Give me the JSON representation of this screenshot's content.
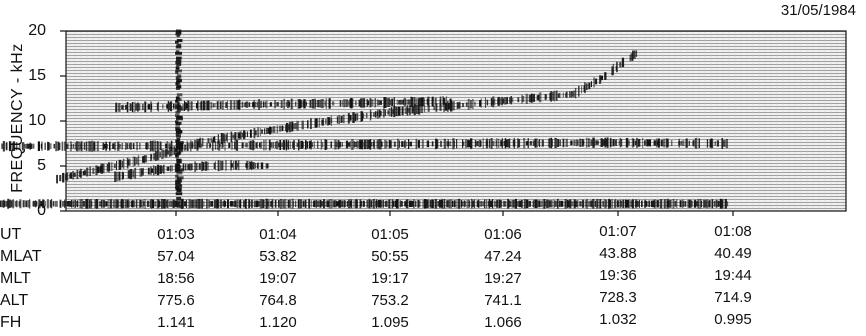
{
  "date": "31/05/1984",
  "chart_data": {
    "type": "heatmap",
    "title": "",
    "ylabel": "FREQUENCY - kHz",
    "ylim": [
      0,
      20
    ],
    "yticks": [
      "0",
      "5",
      "10",
      "15",
      "20"
    ],
    "x_ticks": [
      "01:03",
      "01:04",
      "01:05",
      "01:06",
      "01:07",
      "01:08"
    ],
    "grid": false,
    "ephemeris": [
      {
        "name": "UT",
        "values": [
          "01:03",
          "01:04",
          "01:05",
          "01:06",
          "01:07",
          "01:08"
        ]
      },
      {
        "name": "MLAT",
        "values": [
          "57.04",
          "53.82",
          "50:55",
          "47.24",
          "43.88",
          "40.49"
        ]
      },
      {
        "name": "MLT",
        "values": [
          "18:56",
          "19:07",
          "19:17",
          "19:27",
          "19:36",
          "19:44"
        ]
      },
      {
        "name": "ALT",
        "values": [
          "775.6",
          "764.8",
          "753.2",
          "741.1",
          "728.3",
          "714.9"
        ]
      },
      {
        "name": "FH",
        "values": [
          "1.141",
          "1.120",
          "1.095",
          "1.066",
          "1.032",
          "0.995"
        ]
      }
    ],
    "traces": [
      {
        "name": "band-7khz",
        "points": [
          [
            1.0,
            7.2
          ],
          [
            1.02,
            7.2
          ],
          [
            1.04,
            7.2
          ],
          [
            1.06,
            7.3
          ],
          [
            1.08,
            7.4
          ],
          [
            1.1,
            7.5
          ],
          [
            1.12,
            7.6
          ],
          [
            1.14,
            7.5
          ]
        ]
      },
      {
        "name": "band-4khz",
        "points": [
          [
            1.04,
            3.8
          ],
          [
            1.045,
            4.4
          ],
          [
            1.05,
            4.8
          ],
          [
            1.055,
            5.0
          ],
          [
            1.06,
            5.1
          ],
          [
            1.065,
            5.0
          ]
        ]
      },
      {
        "name": "whistler-rising",
        "points": [
          [
            1.03,
            3.5
          ],
          [
            1.045,
            5.8
          ],
          [
            1.055,
            7.8
          ],
          [
            1.07,
            9.5
          ],
          [
            1.085,
            11.0
          ],
          [
            1.1,
            12.0
          ],
          [
            1.115,
            13.0
          ],
          [
            1.12,
            15.0
          ],
          [
            1.125,
            17.5
          ]
        ]
      },
      {
        "name": "band-11khz",
        "points": [
          [
            1.04,
            11.5
          ],
          [
            1.06,
            11.8
          ],
          [
            1.08,
            12.0
          ],
          [
            1.095,
            12.2
          ]
        ]
      },
      {
        "name": "burst-0103",
        "points": [
          [
            1.05,
            0.5
          ],
          [
            1.05,
            20.0
          ]
        ]
      },
      {
        "name": "lowband",
        "points": [
          [
            1.0,
            0.8
          ],
          [
            1.14,
            0.8
          ]
        ]
      }
    ]
  }
}
